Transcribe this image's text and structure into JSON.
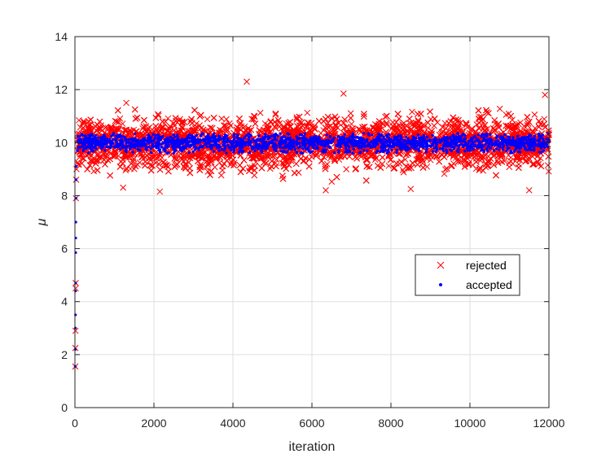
{
  "chart_data": {
    "type": "scatter",
    "title": "",
    "xlabel": "iteration",
    "ylabel": "μ",
    "xlim": [
      0,
      12000
    ],
    "ylim": [
      0,
      14
    ],
    "xticks": [
      0,
      2000,
      4000,
      6000,
      8000,
      10000,
      12000
    ],
    "yticks": [
      0,
      2,
      4,
      6,
      8,
      10,
      12,
      14
    ],
    "grid": true,
    "legend_position": "center-right",
    "series": [
      {
        "name": "rejected",
        "marker": "x",
        "color": "#ff0000",
        "band_center": 10.0,
        "band_range": [
          8.5,
          11.5
        ],
        "x_range": [
          0,
          12000
        ],
        "points": [
          [
            10,
            1.55
          ],
          [
            12,
            2.25
          ],
          [
            15,
            2.9
          ],
          [
            18,
            4.5
          ],
          [
            20,
            4.7
          ],
          [
            25,
            7.9
          ],
          [
            30,
            8.6
          ],
          [
            40,
            9.0
          ],
          [
            4350,
            12.3
          ],
          [
            6800,
            11.85
          ],
          [
            11900,
            11.8
          ],
          [
            1300,
            11.5
          ],
          [
            2150,
            8.15
          ],
          [
            6350,
            8.2
          ],
          [
            11500,
            8.2
          ],
          [
            1220,
            8.3
          ],
          [
            8500,
            8.25
          ]
        ]
      },
      {
        "name": "accepted",
        "marker": "dot",
        "color": "#0000ff",
        "band_center": 10.0,
        "band_range": [
          9.6,
          10.35
        ],
        "x_range": [
          0,
          12000
        ],
        "points": [
          [
            8,
            1.55
          ],
          [
            10,
            2.2
          ],
          [
            12,
            3.0
          ],
          [
            14,
            3.5
          ],
          [
            16,
            4.4
          ],
          [
            18,
            4.7
          ],
          [
            20,
            5.85
          ],
          [
            22,
            6.4
          ],
          [
            24,
            7.0
          ],
          [
            26,
            7.9
          ],
          [
            30,
            8.6
          ],
          [
            35,
            9.1
          ]
        ]
      }
    ]
  }
}
